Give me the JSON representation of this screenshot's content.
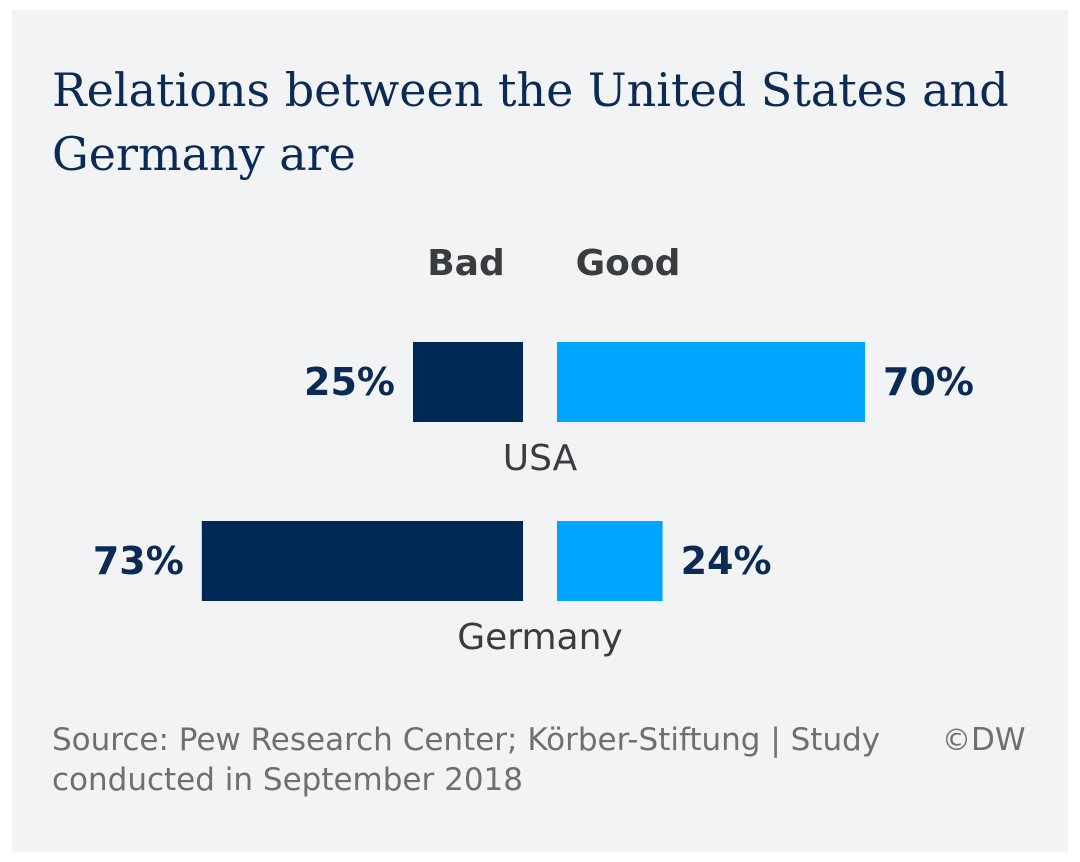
{
  "title": "Relations between the United States and Germany are",
  "source": "Source: Pew Research Center; Körber-Stiftung | Study conducted in September 2018",
  "credit": {
    "symbol": "©",
    "name": "DW"
  },
  "chart_data": {
    "type": "bar",
    "orientation": "horizontal-diverging",
    "unit": "%",
    "categories": [
      "USA",
      "Germany"
    ],
    "series": [
      {
        "name": "Bad",
        "values": [
          25,
          73
        ],
        "color": "#002855"
      },
      {
        "name": "Good",
        "values": [
          70,
          24
        ],
        "color": "#00a5ff"
      }
    ],
    "value_labels": {
      "Bad": [
        "25%",
        "73%"
      ],
      "Good": [
        "70%",
        "24%"
      ]
    },
    "legend": "column headers above bars",
    "grid": false
  }
}
